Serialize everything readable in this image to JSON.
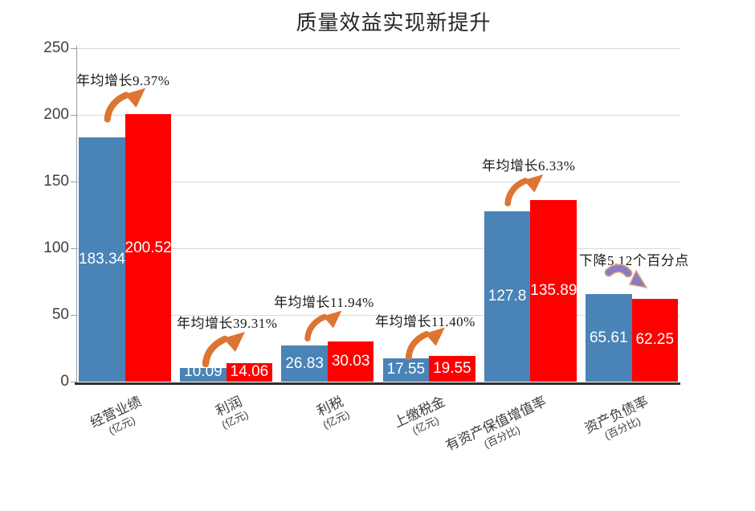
{
  "chart_data": {
    "type": "bar",
    "title": "质量效益实现新提升",
    "legend": "none",
    "y_axis": {
      "min": 0,
      "max": 250,
      "step": 50,
      "tick_labels": [
        "0",
        "50",
        "100",
        "150",
        "200",
        "250"
      ],
      "grid": true
    },
    "categories": [
      {
        "name": "经营业绩",
        "unit": "(亿元)"
      },
      {
        "name": "利润",
        "unit": "(亿元)"
      },
      {
        "name": "利税",
        "unit": "(亿元)"
      },
      {
        "name": "上缴税金",
        "unit": "(亿元)"
      },
      {
        "name": "有资产保值增值率",
        "unit": "(百分比)"
      },
      {
        "name": "资产负债率",
        "unit": "(百分比)"
      }
    ],
    "series": [
      {
        "name": "series-blue",
        "color": "#4A83B6",
        "values": [
          183.34,
          10.09,
          26.83,
          17.55,
          127.8,
          65.61
        ],
        "labels": [
          "183.34",
          "10.09",
          "26.83",
          "17.55",
          "127.8",
          "65.61"
        ]
      },
      {
        "name": "series-red",
        "color": "#FE0000",
        "values": [
          200.52,
          14.06,
          30.03,
          19.55,
          135.89,
          62.25
        ],
        "labels": [
          "200.52",
          "14.06",
          "30.03",
          "19.55",
          "135.89",
          "62.25"
        ]
      }
    ],
    "annotations": [
      {
        "group": 0,
        "text": "年均增长9.37%",
        "direction": "up"
      },
      {
        "group": 1,
        "text": "年均增长39.31%",
        "direction": "up"
      },
      {
        "group": 2,
        "text": "年均增长11.94%",
        "direction": "up"
      },
      {
        "group": 3,
        "text": "年均增长11.40%",
        "direction": "up"
      },
      {
        "group": 4,
        "text": "年均增长6.33%",
        "direction": "up"
      },
      {
        "group": 5,
        "text": "下降5.12个百分点",
        "direction": "down"
      }
    ],
    "colors": {
      "arrow_up": "#DE7431",
      "arrow_down": "#8A7CC4",
      "arrow_down_outline": "#E2A873",
      "value_label_text": "#FFFFFF"
    }
  }
}
